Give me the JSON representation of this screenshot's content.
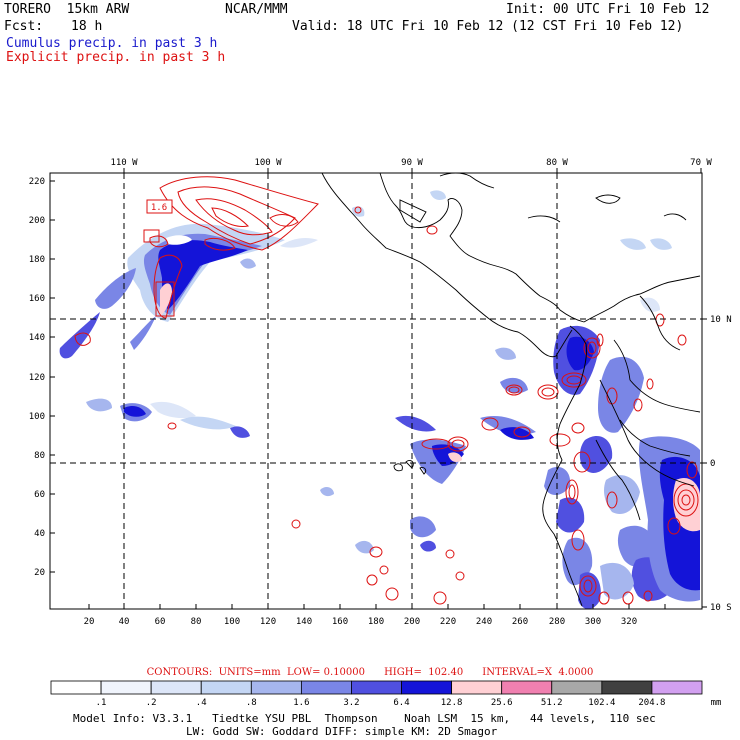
{
  "header": {
    "model": "TORERO  15km ARW",
    "center": "NCAR/MMM",
    "init": "Init: 00 UTC Fri 10 Feb 12",
    "fcst_label": "Fcst:",
    "fcst_value": "18 h",
    "valid": "Valid: 18 UTC Fri 10 Feb 12 (12 CST Fri 10 Feb 12)",
    "cumulus": "Cumulus precip. in past 3 h",
    "explicit": "Explicit precip. in past 3 h"
  },
  "axes": {
    "top_labels": [
      "110 W",
      "100 W",
      "90 W",
      "80 W",
      "70 W"
    ],
    "right_labels": [
      "10 N",
      "0",
      "10 S"
    ],
    "left_ticks": [
      "220",
      "200",
      "180",
      "160",
      "140",
      "120",
      "100",
      "80",
      "60",
      "40",
      "20"
    ],
    "bottom_ticks": [
      "20",
      "40",
      "60",
      "80",
      "100",
      "120",
      "140",
      "160",
      "180",
      "200",
      "220",
      "240",
      "260",
      "280",
      "300",
      "320"
    ]
  },
  "map_annotations": [
    "1.6"
  ],
  "contour_info": {
    "text": "CONTOURS:  UNITS=mm  LOW= 0.10000      HIGH=  102.40      INTERVAL=X  4.0000"
  },
  "colorbar": {
    "labels": [
      ".1",
      ".2",
      ".4",
      ".8",
      "1.6",
      "3.2",
      "6.4",
      "12.8",
      "25.6",
      "51.2",
      "102.4",
      "204.8"
    ],
    "unit": "mm",
    "colors": [
      "#ffffff",
      "#f0f4fc",
      "#dde6f8",
      "#c4d6f4",
      "#a6b6ee",
      "#7a86e6",
      "#5050e0",
      "#1414d8",
      "#ffd0d4",
      "#f080b0",
      "#a8a8a8",
      "#404040",
      "#d2a0f0"
    ]
  },
  "footer": {
    "line1": "Model Info: V3.3.1   Tiedtke YSU PBL  Thompson    Noah LSM  15 km,   44 levels,  110 sec",
    "line2": "LW: Godd SW: Goddard DIFF: simple KM: 2D Smagor"
  }
}
